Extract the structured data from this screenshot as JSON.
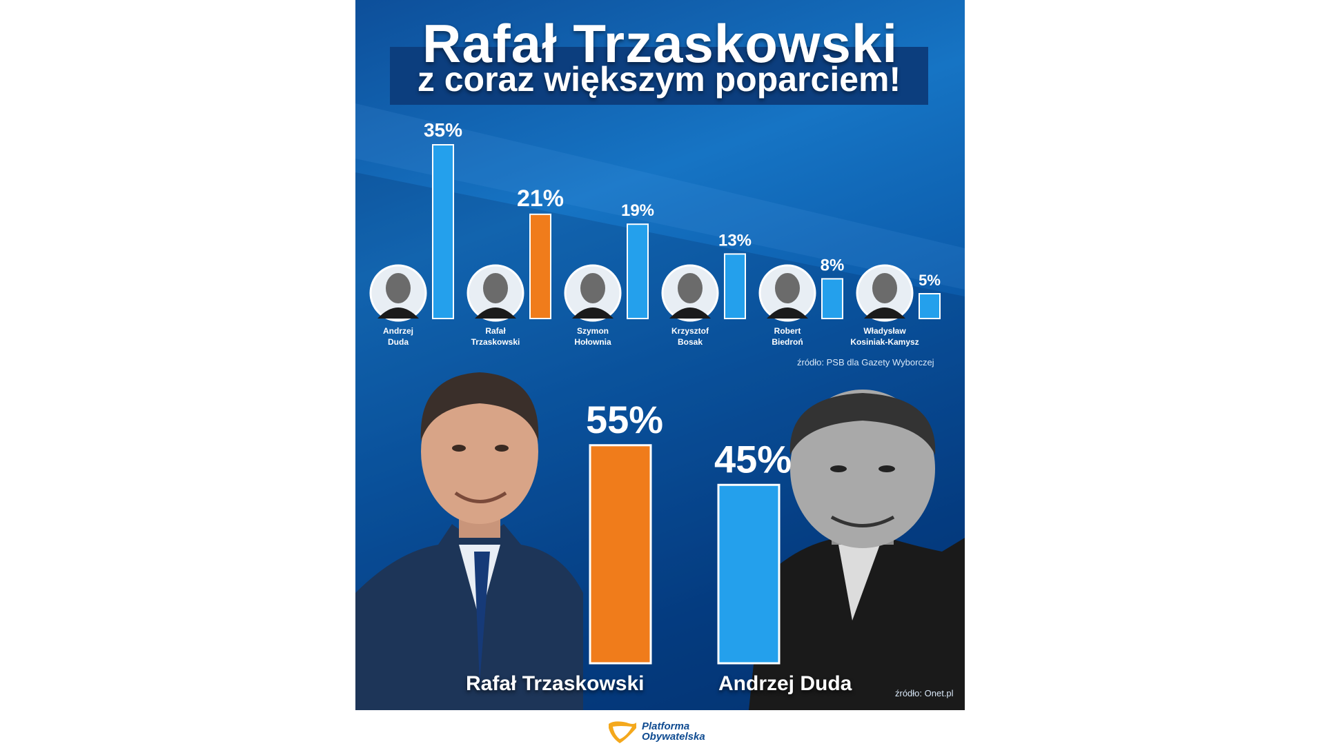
{
  "title_line1": "Rafał Trzaskowski",
  "title_line2": "z coraz większym poparciem!",
  "colors": {
    "highlight": "#f07c1b",
    "bar": "#24a0ec",
    "background": "#0b5aa9"
  },
  "chart_data": [
    {
      "type": "bar",
      "categories": [
        "Andrzej Duda",
        "Rafał Trzaskowski",
        "Szymon Hołownia",
        "Krzysztof Bosak",
        "Robert Biedroń",
        "Władysław Kosiniak-Kamysz"
      ],
      "category_lines": [
        [
          "Andrzej",
          "Duda"
        ],
        [
          "Rafał",
          "Trzaskowski"
        ],
        [
          "Szymon",
          "Hołownia"
        ],
        [
          "Krzysztof",
          "Bosak"
        ],
        [
          "Robert",
          "Biedroń"
        ],
        [
          "Władysław",
          "Kosiniak-Kamysz"
        ]
      ],
      "values": [
        35,
        21,
        19,
        13,
        8,
        5
      ],
      "value_labels": [
        "35%",
        "21%",
        "19%",
        "13%",
        "8%",
        "5%"
      ],
      "highlight": "Rafał Trzaskowski",
      "source": "źródło: PSB dla Gazety Wyborczej"
    },
    {
      "type": "bar",
      "categories": [
        "Rafał Trzaskowski",
        "Andrzej Duda"
      ],
      "values": [
        55,
        45
      ],
      "value_labels": [
        "55%",
        "45%"
      ],
      "highlight": "Rafał Trzaskowski",
      "source": "źródło: Onet.pl"
    }
  ],
  "logo": {
    "line1": "Platforma",
    "line2": "Obywatelska"
  }
}
